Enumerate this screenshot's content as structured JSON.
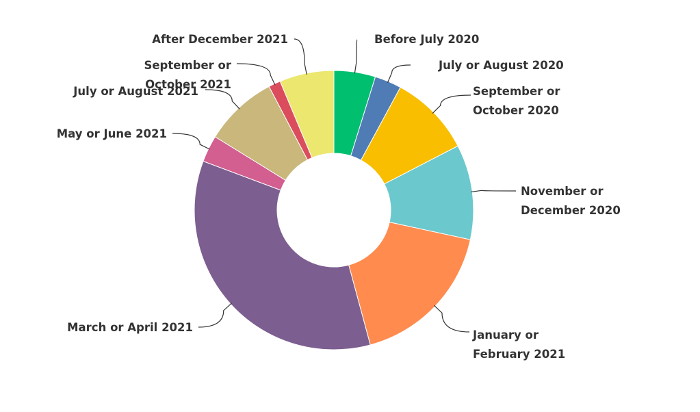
{
  "chart_data": {
    "type": "pie",
    "variant": "donut",
    "title": "",
    "legend": "none (leader-line labels)",
    "categories": [
      "Before July 2020",
      "July or August 2020",
      "September or October 2020",
      "November or December 2020",
      "January or February 2021",
      "March or April 2021",
      "May or June 2021",
      "July or August 2021",
      "September or October 2021",
      "After December 2021"
    ],
    "label_lines": [
      [
        "Before July 2020"
      ],
      [
        "July or August 2020"
      ],
      [
        "September or",
        "October 2020"
      ],
      [
        "November or",
        "December 2020"
      ],
      [
        "January or",
        "February 2021"
      ],
      [
        "March or April 2021"
      ],
      [
        "May or June 2021"
      ],
      [
        "July or August 2021"
      ],
      [
        "September or",
        "October 2021"
      ],
      [
        "After December 2021"
      ]
    ],
    "values": [
      4.8,
      3.1,
      9.5,
      11.0,
      17.4,
      34.9,
      3.1,
      8.5,
      1.4,
      6.3
    ],
    "unit": "percent (estimated)",
    "colors": [
      "#00BF6F",
      "#507CB6",
      "#F9BE00",
      "#6BC8CD",
      "#FF8B4F",
      "#7D5E90",
      "#D25F90",
      "#C9B77B",
      "#DB4D5C",
      "#EBE76F"
    ]
  }
}
